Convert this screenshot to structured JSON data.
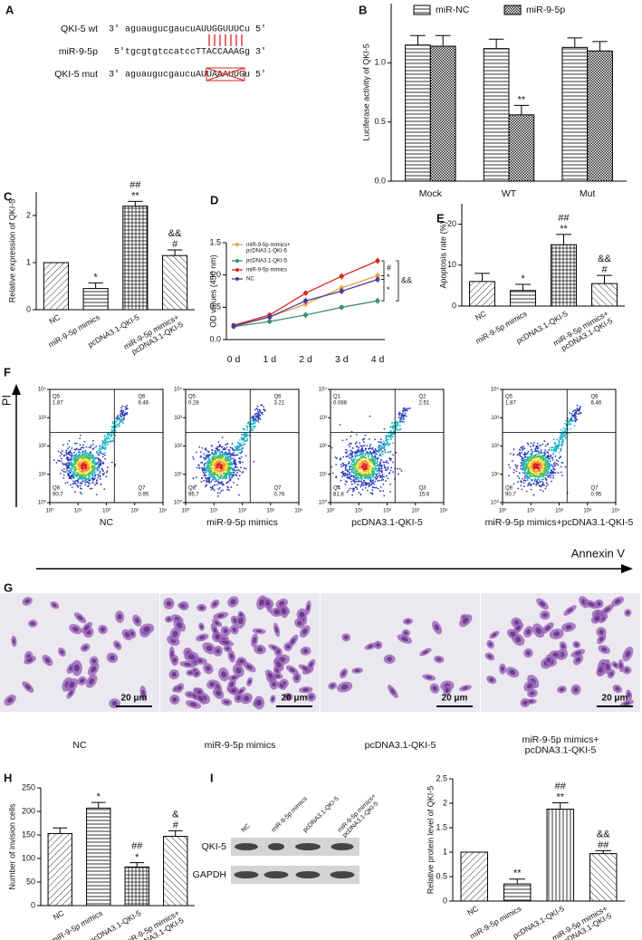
{
  "panel_labels": [
    "A",
    "B",
    "C",
    "D",
    "E",
    "F",
    "G",
    "H",
    "I"
  ],
  "alignment": {
    "rows": [
      {
        "label": "QKI-5 wt",
        "sequence": "3′ aguaugucgaucuAUUGGUUUCu 5′"
      },
      {
        "label": "miR-9-5p",
        "sequence": "5′tgcgtgtccatccTTACCAAAGg 3′"
      },
      {
        "label": "QKI-5 mut",
        "sequence": "3′ aguaugucgaucuAUUAAAUUGu 5′"
      }
    ]
  },
  "chart_data": [
    {
      "type": "grouped-bar",
      "ylabel": "Luciferase activity of QKI-5",
      "categories": [
        "Mock",
        "WT",
        "Mut"
      ],
      "series": [
        {
          "name": "miR-NC",
          "pattern": "horiz",
          "values": [
            1.15,
            1.12,
            1.13
          ],
          "errors": [
            0.08,
            0.08,
            0.08
          ],
          "annotations": [
            null,
            null,
            null
          ]
        },
        {
          "name": "miR-9-5p",
          "pattern": "cross",
          "values": [
            1.14,
            0.56,
            1.1
          ],
          "errors": [
            0.09,
            0.08,
            0.08
          ],
          "annotations": [
            null,
            "**",
            null
          ]
        }
      ],
      "ylim": [
        0,
        1.5
      ],
      "yticks": [
        {
          "value": 0,
          "label": "0.0"
        },
        {
          "value": 0.5,
          "label": "0.5"
        },
        {
          "value": 1,
          "label": "1.0"
        }
      ],
      "legend": "top"
    },
    {
      "type": "bar",
      "ylabel": "Relative expression of QKI-5",
      "categories": [
        "NC",
        "miR-9-5p mimics",
        "pcDNA3.1-QKI-5",
        "miR-9-5p mimics+\npcDNA3.1-QKI-5"
      ],
      "values": [
        1.0,
        0.45,
        2.2,
        1.15
      ],
      "errors": [
        0,
        0.12,
        0.1,
        0.12
      ],
      "annotations": [
        null,
        "*",
        "##\n**",
        "&&\n#"
      ],
      "patterns": [
        "diag",
        "horiz",
        "grid",
        "bdiag"
      ],
      "ylim": [
        0,
        2.5
      ],
      "yticks": [
        0,
        1,
        2
      ]
    },
    {
      "type": "line",
      "ylabel": "OD values (450 nm)",
      "categories": [
        "0 d",
        "1 d",
        "2 d",
        "3 d",
        "4 d"
      ],
      "series": [
        {
          "name": "miR-9-5p mimics+\npcDNA3.1-QKI-5",
          "color": "#e8a14a",
          "values": [
            0.2,
            0.35,
            0.55,
            0.8,
            0.99
          ],
          "errors": [
            0.04,
            0.04,
            0.05,
            0.05,
            0.05
          ]
        },
        {
          "name": "pcDNA3.1-QKI-5",
          "color": "#3e8e6e",
          "values": [
            0.2,
            0.28,
            0.38,
            0.5,
            0.6
          ],
          "errors": [
            0.04,
            0.04,
            0.05,
            0.04,
            0.05
          ]
        },
        {
          "name": "miR-9-5p mimics",
          "color": "#d7261e",
          "values": [
            0.22,
            0.38,
            0.72,
            0.98,
            1.22
          ],
          "errors": [
            0.04,
            0.04,
            0.04,
            0.05,
            0.05
          ]
        },
        {
          "name": "NC",
          "color": "#4b3a9a",
          "values": [
            0.21,
            0.35,
            0.6,
            0.75,
            0.93
          ],
          "errors": [
            0.04,
            0.04,
            0.05,
            0.05,
            0.05
          ]
        }
      ],
      "annotations": [
        "#",
        "*",
        "&&",
        "*"
      ],
      "ylim": [
        0,
        1.5
      ],
      "yticks": [
        {
          "value": 0,
          "label": "0.0"
        },
        {
          "value": 0.5,
          "label": "0.5"
        },
        {
          "value": 1,
          "label": "1.0"
        },
        {
          "value": 1.5,
          "label": "1.5"
        }
      ],
      "legend": "top-left"
    },
    {
      "type": "bar",
      "ylabel": "Apoptosis rate (%)",
      "categories": [
        "NC",
        "miR-9-5p mimics",
        "pcDNA3.1-QKI-5",
        "miR-9-5p mimics+\npcDNA3.1-QKI-5"
      ],
      "values": [
        6,
        3.8,
        15,
        5.5
      ],
      "errors": [
        2,
        1.5,
        2.5,
        2
      ],
      "annotations": [
        null,
        "*",
        "##\n**",
        "&&\n#"
      ],
      "patterns": [
        "diag",
        "horiz",
        "grid",
        "bdiag"
      ],
      "ylim": [
        0,
        25
      ],
      "yticks": [
        0,
        10,
        20
      ]
    },
    {
      "type": "bar",
      "ylabel": "Number of invision cells",
      "categories": [
        "NC",
        "miR-9-5p mimics",
        "pcDNA3.1-QKI-5",
        "miR-9-5p mimics+\npcDNA3.1-QKI-5"
      ],
      "values": [
        153,
        207,
        82,
        147
      ],
      "errors": [
        12,
        12,
        9,
        12
      ],
      "annotations": [
        null,
        "*",
        "##\n*",
        "&\n#"
      ],
      "patterns": [
        "diag",
        "horiz",
        "grid",
        "bdiag"
      ],
      "ylim": [
        0,
        250
      ],
      "yticks": [
        0,
        50,
        100,
        150,
        200,
        250
      ]
    },
    {
      "type": "bar",
      "ylabel": "Relative protein level of QKI-5",
      "categories": [
        "NC",
        "miR-9-5p mimics",
        "pcDNA3.1-QKI-5",
        "miR-9-5p mimics+\npcDNA3.1-QKI-5"
      ],
      "values": [
        1.0,
        0.35,
        1.88,
        0.97
      ],
      "errors": [
        0,
        0.1,
        0.13,
        0.06
      ],
      "annotations": [
        null,
        "**",
        "##\n**",
        "&&\n##"
      ],
      "patterns": [
        "diag",
        "horiz",
        "vert",
        "bdiag"
      ],
      "ylim": [
        0,
        2.5
      ],
      "yticks": [
        0,
        0.5,
        1,
        1.5,
        2,
        2.5
      ]
    }
  ],
  "flow": {
    "y_label": "PI",
    "x_label": "Annexin V",
    "log": true,
    "ticks": [
      {
        "value": 1,
        "label": "10⁰"
      },
      {
        "value": 10,
        "label": "10¹"
      },
      {
        "value": 100,
        "label": "10²"
      },
      {
        "value": 1000,
        "label": "10³"
      },
      {
        "value": 10000,
        "label": "10⁴"
      }
    ],
    "plots": [
      {
        "label": "NC",
        "quadrants": [
          {
            "name": "Q5",
            "value": 1.87
          },
          {
            "name": "Q6",
            "value": 6.46
          },
          {
            "name": "Q8",
            "value": 90.7
          },
          {
            "name": "Q7",
            "value": 0.95
          }
        ]
      },
      {
        "label": "miR-9-5p mimics",
        "quadrants": [
          {
            "name": "Q5",
            "value": 0.28
          },
          {
            "name": "Q6",
            "value": 3.21
          },
          {
            "name": "Q8",
            "value": 95.7
          },
          {
            "name": "Q7",
            "value": 0.76
          }
        ]
      },
      {
        "label": "pcDNA3.1-QKI-5",
        "quadrants": [
          {
            "name": "Q1",
            "value": 0.088
          },
          {
            "name": "Q2",
            "value": 2.51
          },
          {
            "name": "Q4",
            "value": 81.8
          },
          {
            "name": "Q3",
            "value": 15.6
          }
        ]
      },
      {
        "label": "miR-9-5p mimics+pcDNA3.1-QKI-5",
        "quadrants": [
          {
            "name": "Q5",
            "value": 1.87
          },
          {
            "name": "Q6",
            "value": 6.46
          },
          {
            "name": "Q8",
            "value": 90.7
          },
          {
            "name": "Q7",
            "value": 0.95
          }
        ]
      }
    ]
  },
  "micrographs": {
    "scale_bar": "20 μm",
    "panels": [
      "NC",
      "miR-9-5p mimics",
      "pcDNA3.1-QKI-5",
      "miR-9-5p mimics+\npcDNA3.1-QKI-5"
    ]
  },
  "blot": {
    "lanes": [
      "NC",
      "miR-9-5p mimics",
      "pcDNA3.1-QKI-5",
      "miR-9-5p mimics+\npcDNA3.1-QKI-5"
    ],
    "rows": [
      "QKI-5",
      "GAPDH"
    ]
  }
}
